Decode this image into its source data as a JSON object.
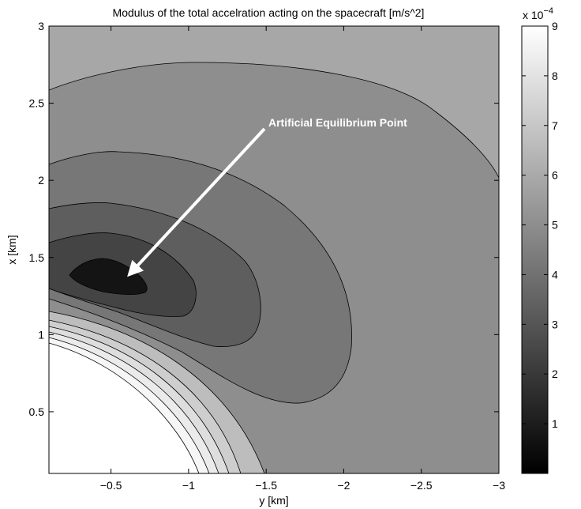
{
  "chart_data": {
    "type": "contour",
    "title": "Modulus of the total accelration acting on the spacecraft [m/s^2]",
    "xlabel": "y [km]",
    "ylabel": "x [km]",
    "xlim": [
      -0.1,
      -3
    ],
    "ylim": [
      0.1,
      3
    ],
    "x_reversed": true,
    "x_ticks": [
      {
        "value": -0.5,
        "label": "−0.5"
      },
      {
        "value": -1,
        "label": "−1"
      },
      {
        "value": -1.5,
        "label": "−1.5"
      },
      {
        "value": -2,
        "label": "−2"
      },
      {
        "value": -2.5,
        "label": "−2.5"
      },
      {
        "value": -3,
        "label": "−3"
      }
    ],
    "y_ticks": [
      {
        "value": 0.5,
        "label": "0.5"
      },
      {
        "value": 1,
        "label": "1"
      },
      {
        "value": 1.5,
        "label": "1.5"
      },
      {
        "value": 2,
        "label": "2"
      },
      {
        "value": 2.5,
        "label": "2.5"
      },
      {
        "value": 3,
        "label": "3"
      }
    ],
    "colorbar": {
      "range": [
        0,
        9
      ],
      "ticks": [
        "1",
        "2",
        "3",
        "4",
        "5",
        "6",
        "7",
        "8",
        "9"
      ],
      "exponent_base": "x 10",
      "exponent_power": "−4",
      "colormap": "gray"
    },
    "fill_colors": {
      "outer": "#a7a7a7",
      "level_1": "#8e8e8e",
      "level_2": "#777777",
      "level_3": "#5e5e5e",
      "level_4": "#444444",
      "level_5": "#141414",
      "inner_ring_1": "#bdbdbd",
      "inner_ring_2": "#cecece",
      "inner_ring_3": "#dedede",
      "inner_ring_4": "#ebebeb",
      "inner_ring_5": "#f6f6f6",
      "body": "#ffffff"
    },
    "annotation": {
      "text": "Artificial Equilibrium Point",
      "point": {
        "y": -0.45,
        "x": 1.35
      }
    },
    "grid": false,
    "legend": "none"
  }
}
